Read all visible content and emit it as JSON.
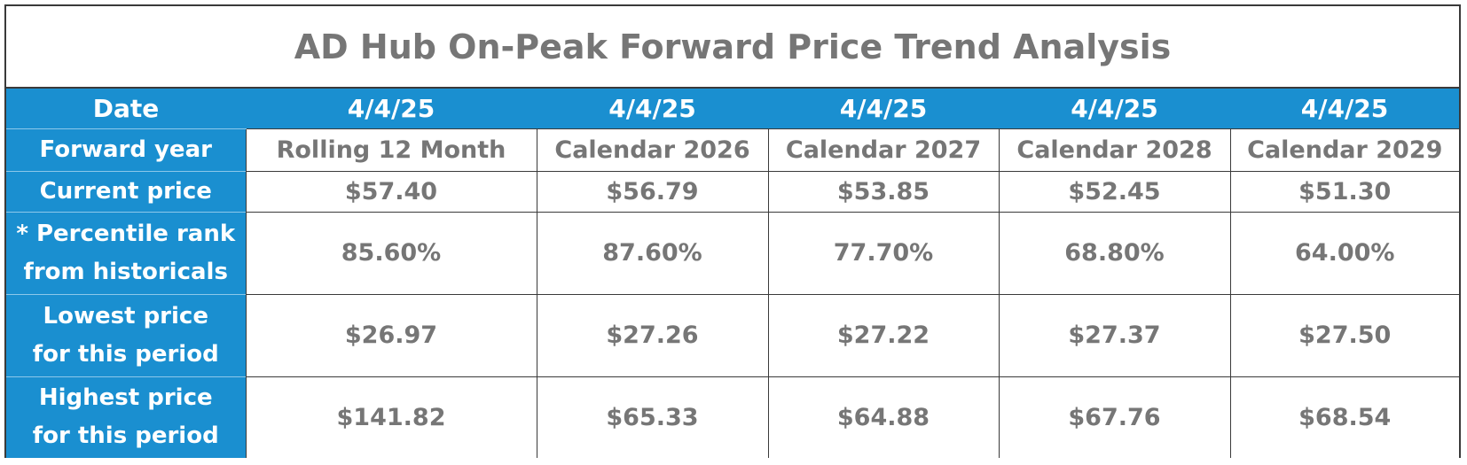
{
  "title": "AD Hub On-Peak Forward Price Trend Analysis",
  "table": {
    "header": {
      "label": "Date",
      "dates": [
        "4/4/25",
        "4/4/25",
        "4/4/25",
        "4/4/25",
        "4/4/25"
      ]
    },
    "rows": {
      "forward_year": {
        "label": "Forward year",
        "values": [
          "Rolling 12 Month",
          "Calendar 2026",
          "Calendar 2027",
          "Calendar 2028",
          "Calendar 2029"
        ]
      },
      "current_price": {
        "label": "Current price",
        "values": [
          "$57.40",
          "$56.79",
          "$53.85",
          "$52.45",
          "$51.30"
        ]
      },
      "percentile_rank": {
        "label_line1": "* Percentile rank",
        "label_line2": "from historicals",
        "values": [
          "85.60%",
          "87.60%",
          "77.70%",
          "68.80%",
          "64.00%"
        ]
      },
      "lowest_price": {
        "label_line1": "Lowest price",
        "label_line2": "for this period",
        "values": [
          "$26.97",
          "$27.26",
          "$27.22",
          "$27.37",
          "$27.50"
        ]
      },
      "highest_price": {
        "label_line1": "Highest price",
        "label_line2": "for this period",
        "values": [
          "$141.82",
          "$65.33",
          "$64.88",
          "$67.76",
          "$68.54"
        ]
      }
    }
  },
  "colors": {
    "header_blue": "#1a8fd0",
    "text_gray": "#767676",
    "border": "#3a3a3a"
  }
}
